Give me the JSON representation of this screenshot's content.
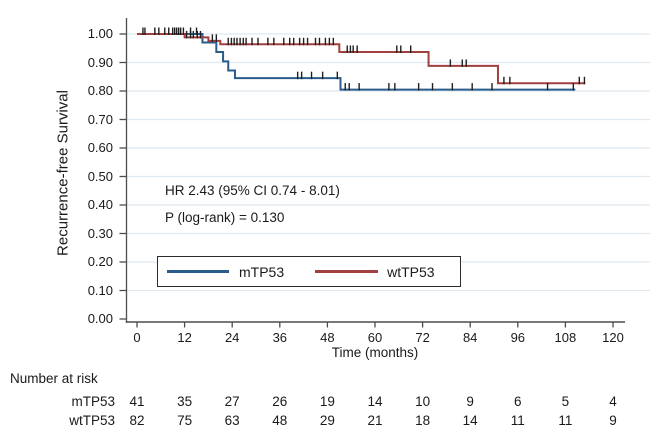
{
  "chart_data": {
    "type": "line",
    "subtype": "kaplan-meier-step",
    "title": "",
    "xlabel": "Time (months)",
    "ylabel": "Recurrence-free Survival",
    "xlim": [
      0,
      120
    ],
    "ylim": [
      0.0,
      1.0
    ],
    "xticks": [
      0,
      12,
      24,
      36,
      48,
      60,
      72,
      84,
      96,
      108,
      120
    ],
    "yticks": [
      "1.00",
      "0.90",
      "0.80",
      "0.70",
      "0.60",
      "0.50",
      "0.40",
      "0.30",
      "0.20",
      "0.10",
      "0.00"
    ],
    "grid": "horizontal",
    "grid_color": "#dfe8ef",
    "axis_color": "#4d4d4d",
    "censor_color": "#1f1f1f",
    "legend_position": "inside-bottom",
    "annotations": [
      "HR 2.43 (95% CI 0.74 - 8.01)",
      "P (log-rank) = 0.130"
    ],
    "series": [
      {
        "name": "mTP53",
        "color": "#2a5d8c",
        "end_month": 110.5,
        "steps": [
          [
            0,
            1.0
          ],
          [
            16.5,
            0.97
          ],
          [
            20,
            0.937
          ],
          [
            21.7,
            0.904
          ],
          [
            23,
            0.872
          ],
          [
            24.7,
            0.845
          ],
          [
            51.3,
            0.805
          ]
        ],
        "censors": [
          [
            2,
            1.0
          ],
          [
            4.5,
            1.0
          ],
          [
            7,
            1.0
          ],
          [
            9.5,
            1.0
          ],
          [
            10.5,
            1.0
          ],
          [
            13.5,
            1.0
          ],
          [
            15,
            1.0
          ],
          [
            40.5,
            0.845
          ],
          [
            41.5,
            0.845
          ],
          [
            44,
            0.845
          ],
          [
            46.8,
            0.845
          ],
          [
            50.5,
            0.845
          ],
          [
            52.5,
            0.805
          ],
          [
            53.5,
            0.805
          ],
          [
            56,
            0.805
          ],
          [
            63.5,
            0.805
          ],
          [
            65,
            0.805
          ],
          [
            71,
            0.805
          ],
          [
            74.5,
            0.805
          ],
          [
            79.5,
            0.805
          ],
          [
            84.5,
            0.805
          ],
          [
            89.5,
            0.805
          ],
          [
            103.5,
            0.805
          ],
          [
            110,
            0.805
          ]
        ]
      },
      {
        "name": "wtTP53",
        "color": "#a23f3f",
        "end_month": 113,
        "steps": [
          [
            0,
            1.0
          ],
          [
            12,
            0.988
          ],
          [
            18,
            0.976
          ],
          [
            21,
            0.964
          ],
          [
            51,
            0.937
          ],
          [
            73.5,
            0.888
          ],
          [
            91,
            0.827
          ]
        ],
        "censors": [
          [
            1.5,
            1.0
          ],
          [
            5.5,
            1.0
          ],
          [
            8,
            1.0
          ],
          [
            9,
            1.0
          ],
          [
            10,
            1.0
          ],
          [
            11,
            1.0
          ],
          [
            11.7,
            1.0
          ],
          [
            12.5,
            0.988
          ],
          [
            13.5,
            0.988
          ],
          [
            14.2,
            0.988
          ],
          [
            15.2,
            0.988
          ],
          [
            16,
            0.988
          ],
          [
            19,
            0.976
          ],
          [
            20,
            0.976
          ],
          [
            23,
            0.964
          ],
          [
            23.8,
            0.964
          ],
          [
            24.5,
            0.964
          ],
          [
            25.2,
            0.964
          ],
          [
            26,
            0.964
          ],
          [
            26.8,
            0.964
          ],
          [
            27.5,
            0.964
          ],
          [
            29,
            0.964
          ],
          [
            30.5,
            0.964
          ],
          [
            33,
            0.964
          ],
          [
            34.5,
            0.964
          ],
          [
            37,
            0.964
          ],
          [
            38.5,
            0.964
          ],
          [
            39.5,
            0.964
          ],
          [
            41,
            0.964
          ],
          [
            42,
            0.964
          ],
          [
            43,
            0.964
          ],
          [
            45,
            0.964
          ],
          [
            46,
            0.964
          ],
          [
            47.5,
            0.964
          ],
          [
            48.5,
            0.964
          ],
          [
            49.5,
            0.964
          ],
          [
            53,
            0.937
          ],
          [
            53.8,
            0.937
          ],
          [
            54.5,
            0.937
          ],
          [
            55.5,
            0.937
          ],
          [
            65.5,
            0.937
          ],
          [
            66.5,
            0.937
          ],
          [
            69,
            0.937
          ],
          [
            79,
            0.888
          ],
          [
            82,
            0.888
          ],
          [
            83,
            0.888
          ],
          [
            92.5,
            0.827
          ],
          [
            94,
            0.827
          ],
          [
            111.5,
            0.827
          ],
          [
            112.8,
            0.827
          ]
        ]
      }
    ]
  },
  "risk_table": {
    "title": "Number at risk",
    "time_points": [
      0,
      12,
      24,
      36,
      48,
      60,
      72,
      84,
      96,
      108,
      120
    ],
    "rows": [
      {
        "label": "mTP53",
        "counts": [
          41,
          35,
          27,
          26,
          19,
          14,
          10,
          9,
          6,
          5,
          4
        ]
      },
      {
        "label": "wtTP53",
        "counts": [
          82,
          75,
          63,
          48,
          29,
          21,
          18,
          14,
          11,
          11,
          9
        ]
      }
    ]
  }
}
